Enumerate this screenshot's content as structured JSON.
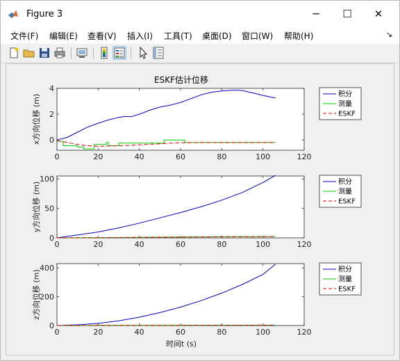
{
  "window": {
    "title": "Figure 3",
    "minimize_symbol": "─",
    "maximize_symbol": "☐",
    "close_symbol": "✕"
  },
  "menubar": {
    "items": [
      "文件(F)",
      "编辑(E)",
      "查看(V)",
      "插入(I)",
      "工具(T)",
      "桌面(D)",
      "窗口(W)",
      "帮助(H)"
    ],
    "dock_arrow": "↘"
  },
  "toolbar": {
    "icons": [
      "new-figure-icon",
      "open-file-icon",
      "save-icon",
      "print-icon",
      "link-plot-icon",
      "colorbar-icon",
      "legend-icon",
      "pointer-icon",
      "property-inspector-icon"
    ]
  },
  "colors": {
    "integral": "#0000bf",
    "measure": "#00cc00",
    "eskf": "#e00000"
  },
  "figure": {
    "title": "ESKF估计位移",
    "xlabel": "时间t (s)"
  },
  "chart_data": [
    {
      "type": "line",
      "title": "ESKF估计位移",
      "ylabel": "x方向位移 (m)",
      "xlabel": "",
      "xlim": [
        0,
        120
      ],
      "ylim": [
        -0.8,
        4
      ],
      "xticks": [
        0,
        20,
        40,
        60,
        80,
        100,
        120
      ],
      "yticks": [
        0,
        2,
        4
      ],
      "grid": false,
      "legend": "right",
      "series": [
        {
          "name": "积分",
          "style": "solid",
          "x": [
            0,
            5,
            10,
            15,
            20,
            25,
            30,
            33,
            36,
            40,
            45,
            50,
            55,
            60,
            65,
            70,
            75,
            80,
            85,
            88,
            90,
            95,
            100,
            106
          ],
          "y": [
            0,
            0.2,
            0.6,
            1.0,
            1.3,
            1.55,
            1.75,
            1.82,
            1.8,
            2.0,
            2.3,
            2.55,
            2.7,
            2.9,
            3.2,
            3.5,
            3.7,
            3.8,
            3.85,
            3.85,
            3.82,
            3.65,
            3.45,
            3.25
          ]
        },
        {
          "name": "测量",
          "style": "solid",
          "x": [
            0,
            3,
            3,
            10,
            10,
            13,
            13,
            18,
            18,
            24,
            24,
            25,
            25,
            30,
            30,
            52,
            52,
            62,
            62,
            106
          ],
          "y": [
            -0.1,
            -0.1,
            -0.45,
            -0.45,
            -0.55,
            -0.55,
            -0.7,
            -0.7,
            -0.35,
            -0.35,
            -0.2,
            -0.2,
            -0.45,
            -0.45,
            -0.25,
            -0.25,
            0,
            0,
            -0.2,
            -0.2
          ]
        },
        {
          "name": "ESKF",
          "style": "dashed",
          "x": [
            0,
            5,
            10,
            15,
            20,
            30,
            40,
            50,
            60,
            70,
            80,
            90,
            100,
            106
          ],
          "y": [
            -0.05,
            -0.2,
            -0.35,
            -0.45,
            -0.5,
            -0.45,
            -0.38,
            -0.3,
            -0.22,
            -0.2,
            -0.2,
            -0.2,
            -0.2,
            -0.2
          ]
        }
      ]
    },
    {
      "type": "line",
      "title": "",
      "ylabel": "y方向位移 (m)",
      "xlabel": "",
      "xlim": [
        0,
        120
      ],
      "ylim": [
        0,
        105
      ],
      "xticks": [
        0,
        20,
        40,
        60,
        80,
        100,
        120
      ],
      "yticks": [
        0,
        50,
        100
      ],
      "grid": false,
      "legend": "right",
      "series": [
        {
          "name": "积分",
          "style": "solid",
          "x": [
            0,
            10,
            20,
            30,
            40,
            50,
            60,
            70,
            80,
            90,
            100,
            106
          ],
          "y": [
            0,
            5,
            10,
            17,
            25,
            34,
            43,
            53,
            64,
            77,
            94,
            106
          ]
        },
        {
          "name": "测量",
          "style": "solid",
          "x": [
            0,
            20,
            40,
            60,
            80,
            100,
            106
          ],
          "y": [
            0,
            0.5,
            1,
            1.5,
            2,
            2.3,
            2.5
          ]
        },
        {
          "name": "ESKF",
          "style": "dashed",
          "x": [
            0,
            20,
            40,
            60,
            80,
            100,
            106
          ],
          "y": [
            0,
            0.4,
            0.9,
            1.4,
            1.8,
            2.1,
            2.2
          ]
        }
      ]
    },
    {
      "type": "line",
      "title": "",
      "ylabel": "z方向位移 (m)",
      "xlabel": "时间t (s)",
      "xlim": [
        0,
        120
      ],
      "ylim": [
        0,
        430
      ],
      "xticks": [
        0,
        20,
        40,
        60,
        80,
        100,
        120
      ],
      "yticks": [
        0,
        200,
        400
      ],
      "grid": false,
      "legend": "right",
      "series": [
        {
          "name": "积分",
          "style": "solid",
          "x": [
            0,
            10,
            20,
            30,
            40,
            50,
            60,
            70,
            80,
            90,
            100,
            106
          ],
          "y": [
            0,
            5,
            15,
            33,
            58,
            90,
            128,
            173,
            225,
            285,
            355,
            425
          ]
        },
        {
          "name": "测量",
          "style": "solid",
          "x": [
            0,
            20,
            40,
            60,
            80,
            100,
            106
          ],
          "y": [
            0,
            1,
            1.5,
            2,
            2.5,
            3,
            3
          ]
        },
        {
          "name": "ESKF",
          "style": "dashed",
          "x": [
            0,
            20,
            40,
            60,
            80,
            100,
            106
          ],
          "y": [
            0,
            0.8,
            1.2,
            1.6,
            2,
            2.4,
            2.5
          ]
        }
      ]
    }
  ]
}
